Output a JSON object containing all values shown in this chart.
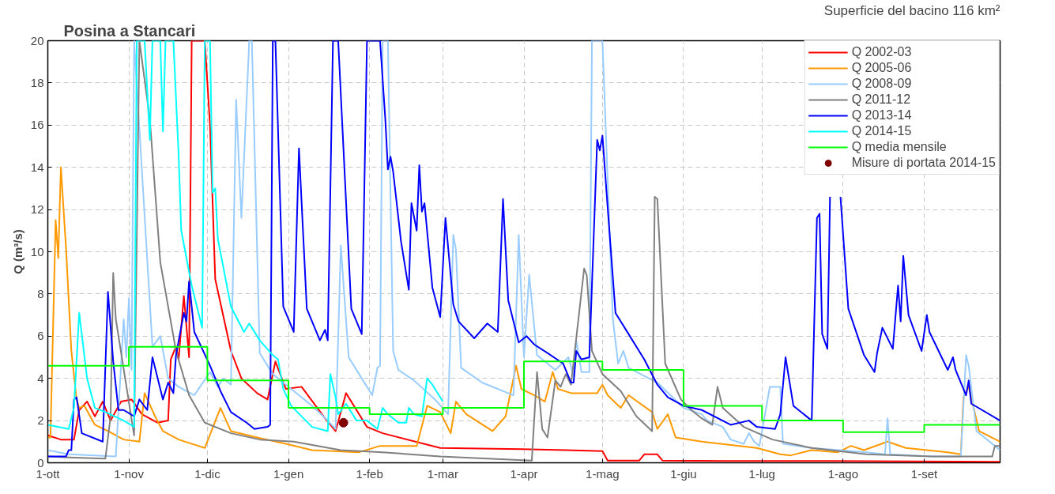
{
  "chart_data": {
    "type": "line",
    "title": "Posina a Stancari",
    "subtitle": "Superficie del bacino 116 km²",
    "ylabel": "Q (m³/s)",
    "xlim": [
      "2014-10-01",
      "2015-09-30"
    ],
    "ylim": [
      0,
      20
    ],
    "xticks": [
      {
        "value": "2014-10-01",
        "label": "1-ott"
      },
      {
        "value": "2014-11-01",
        "label": "1-nov"
      },
      {
        "value": "2014-12-01",
        "label": "1-dic"
      },
      {
        "value": "2015-01-01",
        "label": "1-gen"
      },
      {
        "value": "2015-02-01",
        "label": "1-feb"
      },
      {
        "value": "2015-03-01",
        "label": "1-mar"
      },
      {
        "value": "2015-04-01",
        "label": "1-apr"
      },
      {
        "value": "2015-05-01",
        "label": "1-mag"
      },
      {
        "value": "2015-06-01",
        "label": "1-giu"
      },
      {
        "value": "2015-07-01",
        "label": "1-lug"
      },
      {
        "value": "2015-08-01",
        "label": "1-ago"
      },
      {
        "value": "2015-09-01",
        "label": "1-set"
      }
    ],
    "yticks": [
      0,
      2,
      4,
      6,
      8,
      10,
      12,
      14,
      16,
      18,
      20
    ],
    "grid": true,
    "legend": "top right",
    "series": [
      {
        "name": "Q 2002-03",
        "color": "#ff0000",
        "x": [
          "2014-10-01",
          "2014-10-06",
          "2014-10-11",
          "2014-10-13",
          "2014-10-16",
          "2014-10-19",
          "2014-10-22",
          "2014-10-25",
          "2014-10-29",
          "2014-11-02",
          "2014-11-06",
          "2014-11-12",
          "2014-11-16",
          "2014-11-17",
          "2014-11-19",
          "2014-11-20",
          "2014-11-22",
          "2014-11-24",
          "2014-11-25",
          "2014-11-30",
          "2014-12-02",
          "2014-12-04",
          "2014-12-10",
          "2014-12-14",
          "2014-12-20",
          "2014-12-24",
          "2014-12-27",
          "2014-12-31",
          "2015-01-06",
          "2015-01-15",
          "2015-01-19",
          "2015-01-23",
          "2015-01-31",
          "2015-02-06",
          "2015-02-28",
          "2015-03-31",
          "2015-04-17",
          "2015-05-01",
          "2015-05-03",
          "2015-05-15",
          "2015-05-17",
          "2015-05-22",
          "2015-05-24",
          "2015-06-18",
          "2015-07-28",
          "2015-09-30"
        ],
        "values": [
          1.3,
          1.1,
          1.1,
          2.5,
          2.9,
          2.2,
          2.9,
          2.0,
          2.9,
          3.0,
          2.3,
          1.9,
          2.0,
          4.9,
          5.5,
          4.9,
          7.9,
          5.0,
          20,
          20,
          16,
          8.7,
          5.3,
          4.0,
          3.3,
          3.0,
          4.8,
          3.5,
          3.6,
          2.1,
          1.5,
          3.3,
          1.7,
          1.4,
          0.7,
          0.65,
          0.6,
          0.55,
          0.1,
          0.1,
          0.4,
          0.4,
          0.1,
          0.08,
          0.08,
          0.05
        ]
      },
      {
        "name": "Q 2005-06",
        "color": "#ff9900",
        "x": [
          "2014-10-01",
          "2014-10-02",
          "2014-10-04",
          "2014-10-05",
          "2014-10-06",
          "2014-10-08",
          "2014-10-10",
          "2014-10-12",
          "2014-10-13",
          "2014-10-15",
          "2014-10-19",
          "2014-10-24",
          "2014-10-30",
          "2014-11-05",
          "2014-11-07",
          "2014-11-11",
          "2014-11-14",
          "2014-11-20",
          "2014-11-30",
          "2014-12-06",
          "2014-12-10",
          "2014-12-20",
          "2014-12-31",
          "2015-01-10",
          "2015-01-28",
          "2015-02-05",
          "2015-02-19",
          "2015-02-23",
          "2015-02-28",
          "2015-03-04",
          "2015-03-06",
          "2015-03-10",
          "2015-03-20",
          "2015-03-25",
          "2015-03-29",
          "2015-03-31",
          "2015-04-05",
          "2015-04-09",
          "2015-04-12",
          "2015-04-14",
          "2015-04-19",
          "2015-04-29",
          "2015-05-01",
          "2015-05-03",
          "2015-05-08",
          "2015-05-11",
          "2015-05-20",
          "2015-05-22",
          "2015-05-26",
          "2015-05-29",
          "2015-06-08",
          "2015-06-29",
          "2015-07-08",
          "2015-07-12",
          "2015-07-20",
          "2015-07-30",
          "2015-08-04",
          "2015-08-09",
          "2015-08-18",
          "2015-08-25",
          "2015-09-10",
          "2015-09-15",
          "2015-09-16",
          "2015-09-18",
          "2015-09-22",
          "2015-09-30"
        ],
        "values": [
          1.2,
          1.2,
          11.5,
          9.7,
          14.0,
          10.1,
          5.3,
          3.0,
          2.6,
          2.7,
          1.8,
          1.5,
          1.1,
          1.0,
          3.3,
          2.2,
          1.5,
          1.1,
          0.7,
          2.6,
          1.5,
          1.2,
          0.9,
          0.6,
          0.5,
          0.8,
          0.8,
          2.7,
          2.4,
          1.4,
          2.9,
          2.3,
          1.5,
          2.2,
          4.6,
          3.5,
          3.2,
          2.9,
          4.3,
          3.5,
          3.3,
          3.3,
          3.7,
          3.2,
          2.6,
          3.2,
          2.4,
          1.6,
          2.3,
          1.2,
          1.0,
          0.7,
          0.4,
          0.35,
          0.6,
          0.5,
          0.8,
          0.6,
          1.0,
          0.7,
          0.5,
          0.4,
          3.1,
          3.6,
          1.5,
          1.0
        ]
      },
      {
        "name": "Q 2008-09",
        "color": "#99ccff",
        "x": [
          "2014-10-01",
          "2014-10-09",
          "2014-10-27",
          "2014-10-30",
          "2014-10-31",
          "2014-11-01",
          "2014-11-02",
          "2014-11-03",
          "2014-11-10",
          "2014-11-13",
          "2014-11-16",
          "2014-11-20",
          "2014-11-26",
          "2014-12-02",
          "2014-12-05",
          "2014-12-07",
          "2014-12-10",
          "2014-12-12",
          "2014-12-14",
          "2014-12-17",
          "2014-12-18",
          "2014-12-21",
          "2014-12-26",
          "2015-01-02",
          "2015-01-10",
          "2015-01-16",
          "2015-01-19",
          "2015-01-21",
          "2015-01-24",
          "2015-01-31",
          "2015-02-02",
          "2015-02-04",
          "2015-02-05",
          "2015-02-06",
          "2015-02-08",
          "2015-02-10",
          "2015-02-12",
          "2015-02-18",
          "2015-02-26",
          "2015-03-03",
          "2015-03-05",
          "2015-03-06",
          "2015-03-08",
          "2015-03-16",
          "2015-03-28",
          "2015-03-30",
          "2015-04-01",
          "2015-04-03",
          "2015-04-06",
          "2015-04-13",
          "2015-04-18",
          "2015-04-20",
          "2015-04-21",
          "2015-04-23",
          "2015-04-26",
          "2015-04-27",
          "2015-05-01",
          "2015-05-05",
          "2015-05-07",
          "2015-05-09",
          "2015-05-11",
          "2015-05-22",
          "2015-06-01",
          "2015-06-08",
          "2015-06-10",
          "2015-06-16",
          "2015-06-19",
          "2015-06-24",
          "2015-06-26",
          "2015-06-28",
          "2015-06-30",
          "2015-07-04",
          "2015-07-08",
          "2015-07-09",
          "2015-07-20",
          "2015-08-10",
          "2015-08-17",
          "2015-08-18",
          "2015-08-19",
          "2015-09-04",
          "2015-09-15",
          "2015-09-17",
          "2015-09-18",
          "2015-09-21",
          "2015-09-30"
        ],
        "values": [
          0.6,
          0.4,
          0.3,
          6.8,
          5.0,
          7.8,
          4.4,
          20,
          5.5,
          6.0,
          4.0,
          3.6,
          3.2,
          4.3,
          3.6,
          4.0,
          3.7,
          17.2,
          11.6,
          20,
          20,
          5.2,
          4.2,
          3.5,
          2.7,
          2.0,
          1.6,
          10.3,
          5.0,
          3.6,
          3.2,
          4.5,
          4.6,
          20,
          20,
          5.3,
          4.4,
          3.9,
          3.0,
          2.3,
          10.8,
          10.1,
          4.5,
          3.8,
          3.2,
          10.8,
          5.0,
          8.9,
          5.1,
          4.4,
          5.0,
          4.1,
          5.8,
          4.3,
          4.3,
          20,
          20,
          6.8,
          4.7,
          5.3,
          4.5,
          3.8,
          2.6,
          2.3,
          2.0,
          1.7,
          1.1,
          0.9,
          1.4,
          1.0,
          0.8,
          3.6,
          3.6,
          0.9,
          0.7,
          0.5,
          0.4,
          2.1,
          0.4,
          0.3,
          0.3,
          5.1,
          4.6,
          1.5,
          0.6
        ]
      },
      {
        "name": "Q 2011-12",
        "color": "#808080",
        "x": [
          "2014-10-01",
          "2014-10-09",
          "2014-10-23",
          "2014-10-25",
          "2014-10-26",
          "2014-10-27",
          "2014-11-03",
          "2014-11-05",
          "2014-11-09",
          "2014-11-13",
          "2014-11-19",
          "2014-11-24",
          "2014-11-30",
          "2014-12-10",
          "2014-12-21",
          "2015-01-03",
          "2015-01-21",
          "2015-02-06",
          "2015-02-28",
          "2015-04-04",
          "2015-04-06",
          "2015-04-08",
          "2015-04-10",
          "2015-04-13",
          "2015-04-15",
          "2015-04-17",
          "2015-04-19",
          "2015-04-24",
          "2015-04-25",
          "2015-04-27",
          "2015-05-01",
          "2015-05-08",
          "2015-05-14",
          "2015-05-20",
          "2015-05-21",
          "2015-05-22",
          "2015-05-25",
          "2015-05-31",
          "2015-06-04",
          "2015-06-08",
          "2015-06-12",
          "2015-06-14",
          "2015-06-16",
          "2015-06-24",
          "2015-07-05",
          "2015-07-20",
          "2015-08-10",
          "2015-09-04",
          "2015-09-27",
          "2015-09-28",
          "2015-09-30"
        ],
        "values": [
          0.3,
          0.25,
          0.2,
          2.2,
          9.0,
          6.8,
          1.3,
          20,
          16.3,
          9.5,
          5.3,
          3.2,
          1.9,
          1.4,
          1.1,
          1.0,
          0.6,
          0.5,
          0.3,
          0.1,
          4.3,
          1.6,
          1.2,
          3.9,
          3.6,
          4.2,
          3.7,
          9.2,
          8.9,
          5.3,
          4.2,
          3.4,
          2.2,
          1.5,
          12.6,
          12.5,
          4.7,
          3.0,
          2.5,
          2.1,
          1.8,
          3.6,
          2.6,
          1.7,
          1.1,
          0.7,
          0.4,
          0.3,
          0.3,
          0.8,
          0.8
        ]
      },
      {
        "name": "Q 2013-14",
        "color": "#0000ff",
        "x": [
          "2014-10-01",
          "2014-10-08",
          "2014-10-09",
          "2014-10-10",
          "2014-10-11",
          "2014-10-12",
          "2014-10-14",
          "2014-10-22",
          "2014-10-24",
          "2014-10-26",
          "2014-10-28",
          "2014-10-30",
          "2014-11-03",
          "2014-11-05",
          "2014-11-08",
          "2014-11-10",
          "2014-11-14",
          "2014-11-16",
          "2014-11-18",
          "2014-11-19",
          "2014-11-22",
          "2014-11-23",
          "2014-11-24",
          "2014-11-26",
          "2014-12-02",
          "2014-12-06",
          "2014-12-10",
          "2014-12-16",
          "2014-12-19",
          "2014-12-24",
          "2014-12-25",
          "2014-12-26",
          "2014-12-27",
          "2014-12-30",
          "2015-01-03",
          "2015-01-05",
          "2015-01-08",
          "2015-01-13",
          "2015-01-15",
          "2015-01-16",
          "2015-01-18",
          "2015-01-20",
          "2015-01-25",
          "2015-01-29",
          "2015-01-31",
          "2015-02-05",
          "2015-02-07",
          "2015-02-08",
          "2015-02-09",
          "2015-02-10",
          "2015-02-13",
          "2015-02-16",
          "2015-02-17",
          "2015-02-19",
          "2015-02-20",
          "2015-02-21",
          "2015-02-22",
          "2015-02-25",
          "2015-02-28",
          "2015-03-02",
          "2015-03-05",
          "2015-03-07",
          "2015-03-13",
          "2015-03-18",
          "2015-03-22",
          "2015-03-24",
          "2015-03-26",
          "2015-03-30",
          "2015-04-02",
          "2015-04-05",
          "2015-04-10",
          "2015-04-16",
          "2015-04-19",
          "2015-04-20",
          "2015-04-21",
          "2015-04-23",
          "2015-04-26",
          "2015-04-29",
          "2015-04-30",
          "2015-05-01",
          "2015-05-03",
          "2015-05-06",
          "2015-05-11",
          "2015-05-17",
          "2015-05-22",
          "2015-05-26",
          "2015-06-01",
          "2015-06-08",
          "2015-06-19",
          "2015-06-26",
          "2015-06-29",
          "2015-07-06",
          "2015-07-08",
          "2015-07-10",
          "2015-07-13",
          "2015-07-20",
          "2015-07-22",
          "2015-07-23",
          "2015-07-24",
          "2015-07-26",
          "2015-07-27",
          "2015-07-28",
          "2015-07-30",
          "2015-07-31",
          "2015-08-03",
          "2015-08-09",
          "2015-08-13",
          "2015-08-14",
          "2015-08-16",
          "2015-08-20",
          "2015-08-22",
          "2015-08-23",
          "2015-08-24",
          "2015-08-26",
          "2015-08-31",
          "2015-09-02",
          "2015-09-03",
          "2015-09-10",
          "2015-09-12",
          "2015-09-13",
          "2015-09-17",
          "2015-09-18",
          "2015-09-19",
          "2015-09-30"
        ],
        "values": [
          0.3,
          0.3,
          0.6,
          0.6,
          3.0,
          3.1,
          1.4,
          1.0,
          8.1,
          4.8,
          2.5,
          2.5,
          2.2,
          3.0,
          2.5,
          5.0,
          3.0,
          3.8,
          3.3,
          5.1,
          7.1,
          6.7,
          8.6,
          6.2,
          4.6,
          3.4,
          2.4,
          1.9,
          1.6,
          1.7,
          1.8,
          20,
          20,
          7.4,
          6.2,
          14.9,
          7.3,
          5.8,
          6.3,
          5.8,
          20,
          20,
          7.3,
          6.1,
          20,
          20,
          16.3,
          13.9,
          14.5,
          13.8,
          10.5,
          8.2,
          12.3,
          11.0,
          14.1,
          11.9,
          12.3,
          8.3,
          6.9,
          11.6,
          7.5,
          6.7,
          5.9,
          6.6,
          6.2,
          12.5,
          7.7,
          5.7,
          6.0,
          5.6,
          5.2,
          4.7,
          3.8,
          3.8,
          5.3,
          4.9,
          5.0,
          15.3,
          14.8,
          15.5,
          12.1,
          7.1,
          6.1,
          4.9,
          3.7,
          3.1,
          2.7,
          2.5,
          1.8,
          2.0,
          1.7,
          1.6,
          2.3,
          5.0,
          2.7,
          2.0,
          11.6,
          11.8,
          6.1,
          5.4,
          12.6,
          null,
          null,
          12.6,
          7.3,
          5.1,
          4.3,
          5.2,
          6.4,
          5.4,
          8.4,
          6.7,
          9.8,
          7.0,
          5.3,
          7.0,
          6.2,
          4.4,
          5.0,
          4.4,
          3.2,
          3.9,
          2.8,
          2.0
        ]
      },
      {
        "name": "Q 2014-15",
        "color": "#00ffff",
        "x": [
          "2014-10-01",
          "2014-10-09",
          "2014-10-11",
          "2014-10-13",
          "2014-10-16",
          "2014-10-19",
          "2014-10-23",
          "2014-10-30",
          "2014-11-03",
          "2014-11-04",
          "2014-11-07",
          "2014-11-09",
          "2014-11-10",
          "2014-11-13",
          "2014-11-14",
          "2014-11-15",
          "2014-11-18",
          "2014-11-20",
          "2014-11-21",
          "2014-11-25",
          "2014-11-29",
          "2014-11-30",
          "2014-12-02",
          "2014-12-03",
          "2014-12-04",
          "2014-12-05",
          "2014-12-10",
          "2014-12-15",
          "2014-12-17",
          "2014-12-21",
          "2014-12-26",
          "2014-12-28",
          "2014-12-30",
          "2015-01-02",
          "2015-01-10",
          "2015-01-16",
          "2015-01-17",
          "2015-01-19",
          "2015-01-20",
          "2015-01-23",
          "2015-01-27",
          "2015-01-31",
          "2015-02-04",
          "2015-02-06",
          "2015-02-08",
          "2015-02-12",
          "2015-02-15",
          "2015-02-16",
          "2015-02-18",
          "2015-02-21",
          "2015-02-23",
          "2015-02-25",
          "2015-03-01"
        ],
        "values": [
          1.8,
          1.6,
          2.6,
          7.1,
          4.0,
          2.6,
          2.4,
          2.0,
          1.7,
          20,
          20,
          15.3,
          20,
          20,
          15.7,
          20,
          20,
          14.6,
          11.0,
          8.4,
          6.4,
          20,
          20,
          12.8,
          13.0,
          10.6,
          7.4,
          6.2,
          6.6,
          5.8,
          5.1,
          4.9,
          3.5,
          2.7,
          1.7,
          1.5,
          4.2,
          3.1,
          2.3,
          2.8,
          2.0,
          2.0,
          1.6,
          2.6,
          2.3,
          1.9,
          1.9,
          2.6,
          2.3,
          2.2,
          4.0,
          3.7,
          2.9
        ]
      },
      {
        "name": "Q media mensile",
        "type": "step",
        "color": "#00ff00",
        "x": [
          "2014-10-01",
          "2014-11-01",
          "2014-12-01",
          "2015-01-01",
          "2015-02-01",
          "2015-03-01",
          "2015-04-01",
          "2015-05-01",
          "2015-06-01",
          "2015-07-01",
          "2015-08-01",
          "2015-09-01",
          "2015-09-30"
        ],
        "values": [
          4.6,
          5.5,
          3.9,
          2.6,
          2.3,
          2.6,
          4.8,
          4.4,
          2.7,
          2.0,
          1.45,
          1.8,
          1.8
        ]
      },
      {
        "name": "Misure di portata 2014-15",
        "type": "scatter",
        "marker": "circle",
        "color": "#800000",
        "x": [
          "2015-01-22"
        ],
        "values": [
          1.9
        ]
      }
    ]
  }
}
